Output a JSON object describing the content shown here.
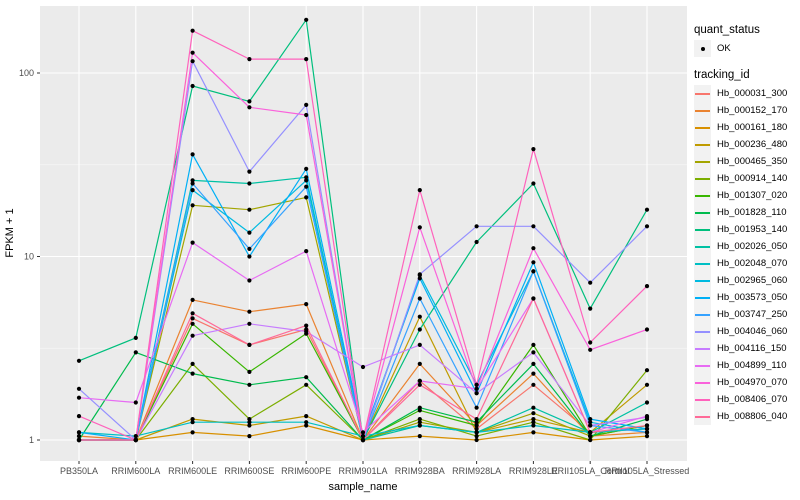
{
  "panel": {
    "bg_color": "#EBEBEB",
    "grid_color": "#FFFFFF",
    "axis_text_color": "#4D4D4D",
    "point_color": "#000000"
  },
  "chart_data": {
    "type": "line",
    "title": "",
    "xlabel": "sample_name",
    "ylabel": "FPKM + 1",
    "y_scale": "log10",
    "y_ticks": [
      1,
      10,
      100
    ],
    "ylim": [
      0.95,
      230
    ],
    "grid": "major white on gray panel, minor horizontal at half-decades",
    "legend_position": "right",
    "x_categories": [
      "PB350LA",
      "RRIM600LA",
      "RRIM600LE",
      "RRIM600SE",
      "RRIM600PE",
      "RRIM901LA",
      "RRIM928BA",
      "RRIM928LA",
      "RRIM928LE",
      "RRII105LA_Control",
      "RRII105LA_Stressed"
    ],
    "point_marker": "black dot on every observation",
    "series": [
      {
        "name": "Hb_000031_300",
        "color": "#F8766D",
        "values": [
          1.0,
          1.0,
          4.6,
          3.3,
          4.0,
          1.0,
          2.1,
          1.15,
          2.0,
          1.1,
          1.15
        ]
      },
      {
        "name": "Hb_000152_170",
        "color": "#EA8331",
        "values": [
          1.05,
          1.0,
          5.8,
          5.0,
          5.5,
          1.0,
          2.6,
          1.2,
          2.3,
          1.05,
          1.1
        ]
      },
      {
        "name": "Hb_000161_180",
        "color": "#D89000",
        "values": [
          1.0,
          1.0,
          1.1,
          1.05,
          1.2,
          1.0,
          1.05,
          1.0,
          1.1,
          1.0,
          1.05
        ]
      },
      {
        "name": "Hb_000236_480",
        "color": "#C09B00",
        "values": [
          1.0,
          1.0,
          1.3,
          1.2,
          1.35,
          1.0,
          4.7,
          1.1,
          1.3,
          1.1,
          2.0
        ]
      },
      {
        "name": "Hb_000465_350",
        "color": "#A3A500",
        "values": [
          1.0,
          1.0,
          19.0,
          18.0,
          21.0,
          1.0,
          1.25,
          1.1,
          1.4,
          1.05,
          1.2
        ]
      },
      {
        "name": "Hb_000914_140",
        "color": "#7CAE00",
        "values": [
          1.0,
          1.0,
          2.6,
          1.3,
          2.0,
          1.0,
          1.3,
          1.05,
          1.25,
          1.0,
          2.4
        ]
      },
      {
        "name": "Hb_001307_020",
        "color": "#39B600",
        "values": [
          1.0,
          1.0,
          4.3,
          2.35,
          3.8,
          1.0,
          1.45,
          1.2,
          3.3,
          1.05,
          1.2
        ]
      },
      {
        "name": "Hb_001828_110",
        "color": "#00BB4E",
        "values": [
          1.0,
          3.0,
          2.3,
          2.0,
          2.2,
          1.0,
          1.5,
          1.25,
          2.6,
          1.05,
          1.3
        ]
      },
      {
        "name": "Hb_001953_140",
        "color": "#00BF7D",
        "values": [
          2.7,
          3.6,
          85,
          70,
          195,
          1.0,
          4.0,
          12,
          25,
          5.2,
          18
        ]
      },
      {
        "name": "Hb_002026_050",
        "color": "#00C1A3",
        "values": [
          1.0,
          1.0,
          26,
          25,
          27,
          1.0,
          1.2,
          1.1,
          1.5,
          1.1,
          1.6
        ]
      },
      {
        "name": "Hb_002048_070",
        "color": "#00BFC4",
        "values": [
          1.1,
          1.05,
          1.25,
          1.25,
          1.25,
          1.05,
          1.2,
          1.1,
          1.2,
          1.1,
          1.15
        ]
      },
      {
        "name": "Hb_002965_060",
        "color": "#00BAE0",
        "values": [
          1.0,
          1.0,
          23,
          13.5,
          26,
          1.0,
          7.9,
          2.0,
          8.3,
          1.25,
          1.1
        ]
      },
      {
        "name": "Hb_003573_050",
        "color": "#00B0F6",
        "values": [
          1.1,
          1.0,
          36,
          10,
          30,
          1.05,
          7.6,
          1.8,
          9.3,
          1.3,
          1.15
        ]
      },
      {
        "name": "Hb_003747_250",
        "color": "#35A2FF",
        "values": [
          1.0,
          1.0,
          25,
          11,
          24,
          1.0,
          5.9,
          1.5,
          8.3,
          1.2,
          1.1
        ]
      },
      {
        "name": "Hb_004046_060",
        "color": "#9590FF",
        "values": [
          1.9,
          1.0,
          116,
          29,
          67,
          1.0,
          8.0,
          14.6,
          14.6,
          7.2,
          14.6
        ]
      },
      {
        "name": "Hb_004116_150",
        "color": "#C77CFF",
        "values": [
          1.0,
          1.0,
          3.7,
          4.3,
          3.9,
          2.5,
          3.3,
          1.8,
          3.0,
          1.2,
          1.33
        ]
      },
      {
        "name": "Hb_004899_110",
        "color": "#E76BF3",
        "values": [
          1.7,
          1.6,
          11.9,
          7.4,
          10.7,
          1.1,
          2.1,
          1.9,
          5.9,
          1.1,
          1.35
        ]
      },
      {
        "name": "Hb_004970_070",
        "color": "#FA62DB",
        "values": [
          1.0,
          1.0,
          129,
          65,
          59,
          1.0,
          14.4,
          1.9,
          11.1,
          3.1,
          4.0
        ]
      },
      {
        "name": "Hb_008406_070",
        "color": "#FF62BC",
        "values": [
          1.35,
          1.0,
          170,
          119,
          119,
          1.0,
          23.0,
          2.0,
          38.5,
          3.4,
          6.9
        ]
      },
      {
        "name": "Hb_008806_040",
        "color": "#FF6A98",
        "values": [
          1.0,
          1.0,
          4.9,
          3.3,
          4.2,
          1.0,
          2.0,
          1.3,
          5.9,
          1.1,
          1.2
        ]
      }
    ]
  },
  "legend": {
    "quant_status": {
      "title": "quant_status",
      "items": [
        {
          "label": "OK",
          "marker": "black-point"
        }
      ]
    },
    "tracking_id": {
      "title": "tracking_id"
    }
  }
}
